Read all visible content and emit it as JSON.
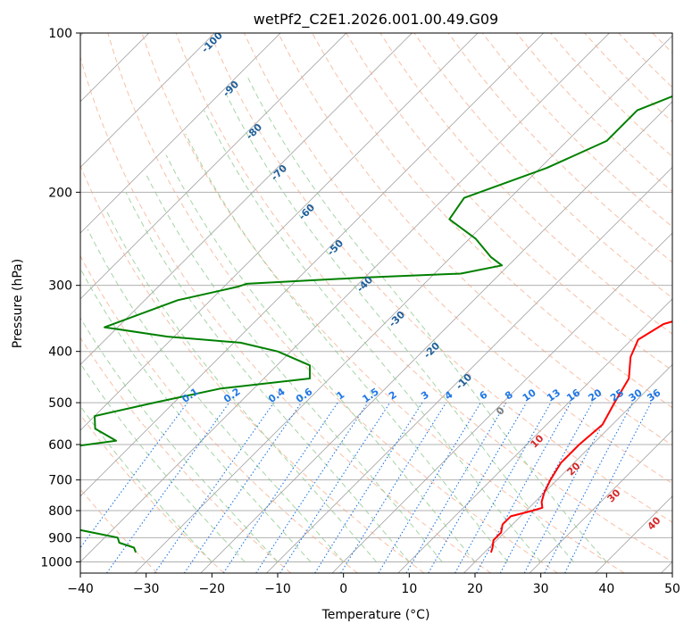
{
  "chart_data": {
    "type": "line",
    "title": "wetPf2_C2E1.2026.001.00.49.G09",
    "xlabel": "Temperature (°C)",
    "ylabel": "Pressure (hPa)",
    "xlim": [
      -40,
      50
    ],
    "ylim": [
      1050,
      100
    ],
    "y_scale": "log",
    "grid": true,
    "x_ticks": [
      "−40",
      "−30",
      "−20",
      "−10",
      "0",
      "10",
      "20",
      "30",
      "40",
      "50"
    ],
    "y_ticks": [
      "100",
      "200",
      "300",
      "400",
      "500",
      "600",
      "700",
      "800",
      "900",
      "1000"
    ],
    "colors": {
      "temperature": "#ff0000",
      "dewpoint": "#008000",
      "isotherm_skew": "#a0a0a0",
      "dry_adiabat": "#f4a582",
      "moist_adiabat": "#8fc98f",
      "mixing_ratio": "#1f77e4",
      "hazard_label": "#d62728",
      "isotherm_label": "#1f5f99"
    },
    "isotherm_labels": [
      "-100",
      "-90",
      "-80",
      "-70",
      "-60",
      "-50",
      "-40",
      "-30",
      "-20",
      "-10",
      "0",
      "10",
      "20",
      "30",
      "40"
    ],
    "mixing_ratio_labels": [
      "0.1",
      "0.2",
      "0.4",
      "0.6",
      "1",
      "1.5",
      "2",
      "3",
      "4",
      "6",
      "8",
      "10",
      "13",
      "16",
      "20",
      "25",
      "30",
      "36"
    ],
    "series": [
      {
        "key": "temperature",
        "p": [
          100,
          110,
          125,
          140,
          160,
          180,
          200,
          230,
          260,
          290,
          320,
          335,
          355,
          380,
          410,
          450,
          500,
          550,
          600,
          650,
          700,
          740,
          770,
          790,
          800,
          820,
          850,
          880,
          910,
          940,
          960
        ],
        "x": [
          3.7,
          3.9,
          1.5,
          2.5,
          1.5,
          4.0,
          8.5,
          13.0,
          16.5,
          19.0,
          20.5,
          17.5,
          12.5,
          11.0,
          12.5,
          15.5,
          17.0,
          18.5,
          18.0,
          18.0,
          19.0,
          20.0,
          21.0,
          22.0,
          21.0,
          18.5,
          18.5,
          19.5,
          19.5,
          20.5,
          21.0
        ]
      },
      {
        "key": "dewpoint",
        "p": [
          100,
          110,
          125,
          140,
          160,
          180,
          205,
          225,
          245,
          265,
          275,
          285,
          290,
          298,
          302,
          320,
          360,
          375,
          385,
          400,
          425,
          450,
          470,
          500,
          530,
          560,
          590,
          620,
          640,
          660,
          690,
          710,
          780,
          810,
          840,
          870,
          900,
          920,
          940,
          960
        ],
        "x": [
          -10.0,
          -14.0,
          -18.0,
          -24.0,
          -24.0,
          -29.0,
          -37.0,
          -36.0,
          -29.0,
          -24.0,
          -21.0,
          -26.0,
          -40.0,
          -57.0,
          -58.0,
          -65.0,
          -72.0,
          -61.0,
          -49.0,
          -42.0,
          -35.0,
          -33.0,
          -45.0,
          -53.0,
          -60.0,
          -58.0,
          -53.0,
          -64.0,
          -75.0,
          -82.0,
          -93.0,
          -105.0,
          -140.0,
          -95.0,
          -62.0,
          -45.0,
          -38.0,
          -37.0,
          -34.0,
          -33.0
        ]
      }
    ]
  }
}
